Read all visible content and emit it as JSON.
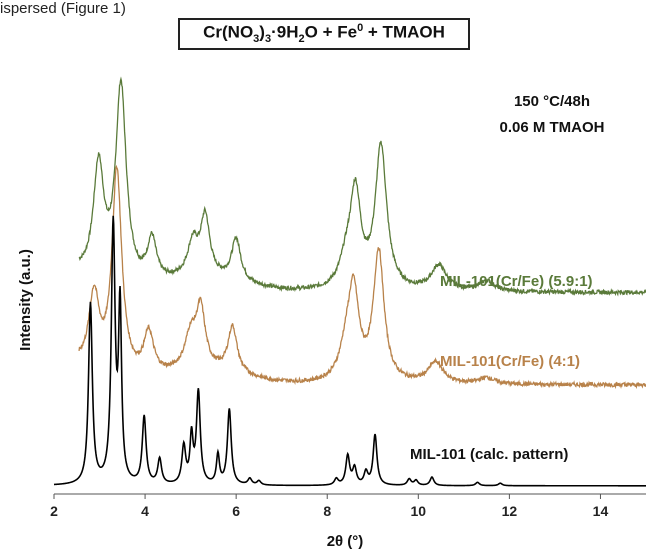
{
  "page_fragment": "ispersed (Figure 1)",
  "title": {
    "parts": [
      "Cr(NO",
      "3",
      ")",
      "3",
      "·9H",
      "2",
      "O + Fe",
      "0",
      " + TMAOH"
    ],
    "styles": [
      "n",
      "sub",
      "n",
      "sub",
      "n",
      "sub",
      "n",
      "sup",
      "n"
    ]
  },
  "conditions": [
    "150 °C/48h",
    "0.06 M TMAOH"
  ],
  "chart_data": {
    "type": "line",
    "xlabel": "2θ (°)",
    "ylabel": "Intensity (a.u.)",
    "xlim": [
      2,
      15
    ],
    "xticks": [
      2,
      4,
      6,
      8,
      10,
      12,
      14
    ],
    "ylim": [
      0,
      100
    ],
    "grid": false,
    "series": [
      {
        "name": "MIL-101(Cr/Fe) (5.9:1)",
        "color": "#5a7a3a",
        "baseline": 47,
        "peaks": [
          [
            2.98,
            27,
            0.14
          ],
          [
            3.47,
            47,
            0.14
          ],
          [
            4.15,
            10,
            0.12
          ],
          [
            5.05,
            8,
            0.14
          ],
          [
            5.32,
            14,
            0.12
          ],
          [
            6.0,
            10,
            0.12
          ],
          [
            8.42,
            6,
            0.18
          ],
          [
            8.62,
            22,
            0.14
          ],
          [
            9.18,
            34,
            0.15
          ],
          [
            10.45,
            6,
            0.2
          ],
          [
            11.5,
            2.5,
            0.2
          ]
        ]
      },
      {
        "name": "MIL-101(Cr/Fe) (4:1)",
        "color": "#b8824a",
        "baseline": 25,
        "peaks": [
          [
            2.88,
            18,
            0.14
          ],
          [
            3.38,
            49,
            0.13
          ],
          [
            4.08,
            10,
            0.13
          ],
          [
            5.0,
            8,
            0.15
          ],
          [
            5.22,
            14,
            0.12
          ],
          [
            5.92,
            11,
            0.12
          ],
          [
            8.42,
            7,
            0.18
          ],
          [
            8.58,
            20,
            0.14
          ],
          [
            9.13,
            31,
            0.14
          ],
          [
            10.38,
            5,
            0.2
          ],
          [
            11.5,
            1.5,
            0.2
          ]
        ]
      },
      {
        "name": "MIL-101 (calc. pattern)",
        "color": "#000000",
        "baseline": 1,
        "peaks": [
          [
            2.8,
            43,
            0.05
          ],
          [
            3.3,
            61,
            0.05
          ],
          [
            3.45,
            41,
            0.04
          ],
          [
            3.98,
            16,
            0.05
          ],
          [
            4.32,
            6,
            0.05
          ],
          [
            4.85,
            9,
            0.05
          ],
          [
            5.02,
            11,
            0.04
          ],
          [
            5.17,
            22,
            0.05
          ],
          [
            5.6,
            7,
            0.04
          ],
          [
            5.85,
            18,
            0.05
          ],
          [
            6.3,
            1.5,
            0.05
          ],
          [
            6.5,
            1,
            0.05
          ],
          [
            8.2,
            1.5,
            0.05
          ],
          [
            8.45,
            7,
            0.05
          ],
          [
            8.6,
            4,
            0.05
          ],
          [
            8.85,
            3,
            0.05
          ],
          [
            9.05,
            12,
            0.05
          ],
          [
            9.8,
            1.5,
            0.05
          ],
          [
            9.95,
            1.2,
            0.05
          ],
          [
            10.3,
            2,
            0.05
          ],
          [
            11.3,
            0.8,
            0.05
          ],
          [
            11.8,
            0.6,
            0.05
          ]
        ]
      }
    ]
  }
}
